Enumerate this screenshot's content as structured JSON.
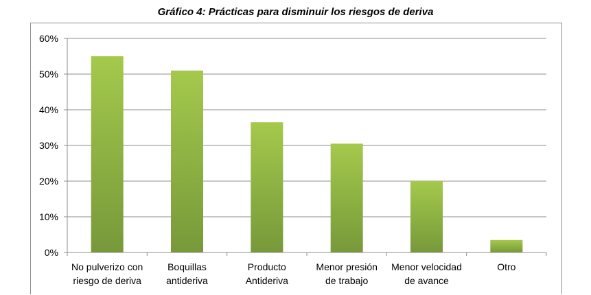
{
  "chart_data": {
    "type": "bar",
    "title": "Gráfico 4: Prácticas para disminuir los riesgos de deriva",
    "categories": [
      [
        "No pulverizo con",
        "riesgo de deriva"
      ],
      [
        "Boquillas",
        "antideriva"
      ],
      [
        "Producto",
        "Antideriva"
      ],
      [
        "Menor presión",
        "de trabajo"
      ],
      [
        "Menor velocidad",
        "de avance"
      ],
      [
        "Otro"
      ]
    ],
    "values": [
      55,
      51,
      36.5,
      30.5,
      20,
      3.5
    ],
    "ylim": [
      0,
      60
    ],
    "yticks": [
      "0%",
      "10%",
      "20%",
      "30%",
      "40%",
      "50%",
      "60%"
    ],
    "ytick_values": [
      0,
      10,
      20,
      30,
      40,
      50,
      60
    ],
    "grid": true,
    "colors": {
      "bar_light": "#a4c94c",
      "bar_dark": "#77993a",
      "grid": "#8c8c8c"
    }
  }
}
